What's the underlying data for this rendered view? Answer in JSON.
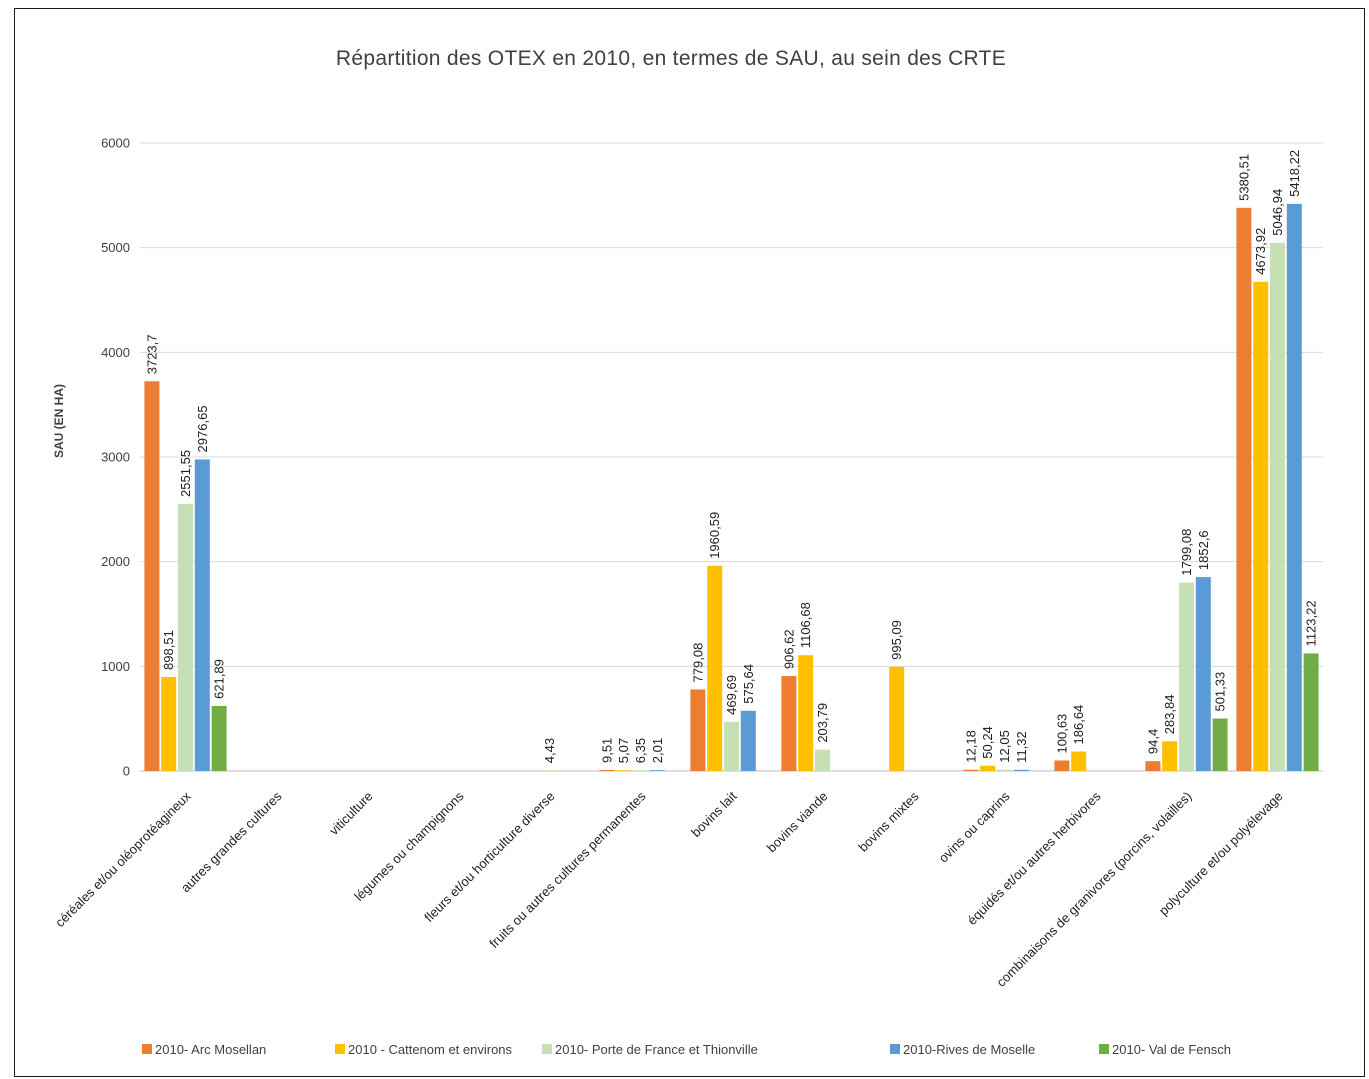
{
  "chart_data": {
    "type": "bar",
    "title": "Répartition des OTEX en 2010, en termes de SAU, au sein des CRTE",
    "xlabel": "",
    "ylabel": "SAU (EN HA)",
    "ylim": [
      0,
      6000
    ],
    "yticks": [
      0,
      1000,
      2000,
      3000,
      4000,
      5000,
      6000
    ],
    "grid": true,
    "legend_position": "bottom",
    "categories": [
      "céréales et/ou oléoprotéagineux",
      "autres grandes cultures",
      "viticulture",
      "légumes ou champignons",
      "fleurs et/ou horticulture diverse",
      "fruits ou autres cultures permanentes",
      "bovins lait",
      "bovins viande",
      "bovins mixtes",
      "ovins ou caprins",
      "équidés et/ou autres herbivores",
      "combinaisons de granivores (porcins, volailles)",
      "polyculture et/ou polyélevage"
    ],
    "series": [
      {
        "name": "2010- Arc Mosellan",
        "color": "#ed7d31",
        "values": [
          3723.7,
          null,
          null,
          null,
          null,
          9.51,
          779.08,
          906.62,
          null,
          12.18,
          100.63,
          94.4,
          5380.51
        ],
        "labels": [
          "3723,7",
          "",
          "",
          "",
          "",
          "9,51",
          "779,08",
          "906,62",
          "",
          "12,18",
          "100,63",
          "94,4",
          "5380,51"
        ]
      },
      {
        "name": "2010 - Cattenom et environs",
        "color": "#ffc000",
        "values": [
          898.51,
          null,
          null,
          null,
          null,
          5.07,
          1960.59,
          1106.68,
          995.09,
          50.24,
          186.64,
          283.84,
          4673.92
        ],
        "labels": [
          "898,51",
          "",
          "",
          "",
          "",
          "5,07",
          "1960,59",
          "1106,68",
          "995,09",
          "50,24",
          "186,64",
          "283,84",
          "4673,92"
        ]
      },
      {
        "name": "2010- Porte de France et Thionville",
        "color": "#c5e0b4",
        "values": [
          2551.55,
          null,
          null,
          null,
          4.43,
          6.35,
          469.69,
          203.79,
          null,
          12.05,
          null,
          1799.08,
          5046.94
        ],
        "labels": [
          "2551,55",
          "",
          "",
          "",
          "4,43",
          "6,35",
          "469,69",
          "203,79",
          "",
          "12,05",
          "",
          "1799,08",
          "5046,94"
        ]
      },
      {
        "name": "2010-Rives de Moselle",
        "color": "#5b9bd5",
        "values": [
          2976.65,
          null,
          null,
          null,
          null,
          2.01,
          575.64,
          null,
          null,
          11.32,
          null,
          1852.6,
          5418.22
        ],
        "labels": [
          "2976,65",
          "",
          "",
          "",
          "",
          "2,01",
          "575,64",
          "",
          "",
          "11,32",
          "",
          "1852,6",
          "5418,22"
        ]
      },
      {
        "name": "2010- Val de Fensch",
        "color": "#70ad47",
        "values": [
          621.89,
          null,
          null,
          null,
          null,
          null,
          null,
          null,
          null,
          null,
          null,
          501.33,
          1123.22
        ],
        "labels": [
          "621,89",
          "",
          "",
          "",
          "",
          "",
          "",
          "",
          "",
          "",
          "",
          "501,33",
          "1123,22"
        ]
      }
    ]
  }
}
